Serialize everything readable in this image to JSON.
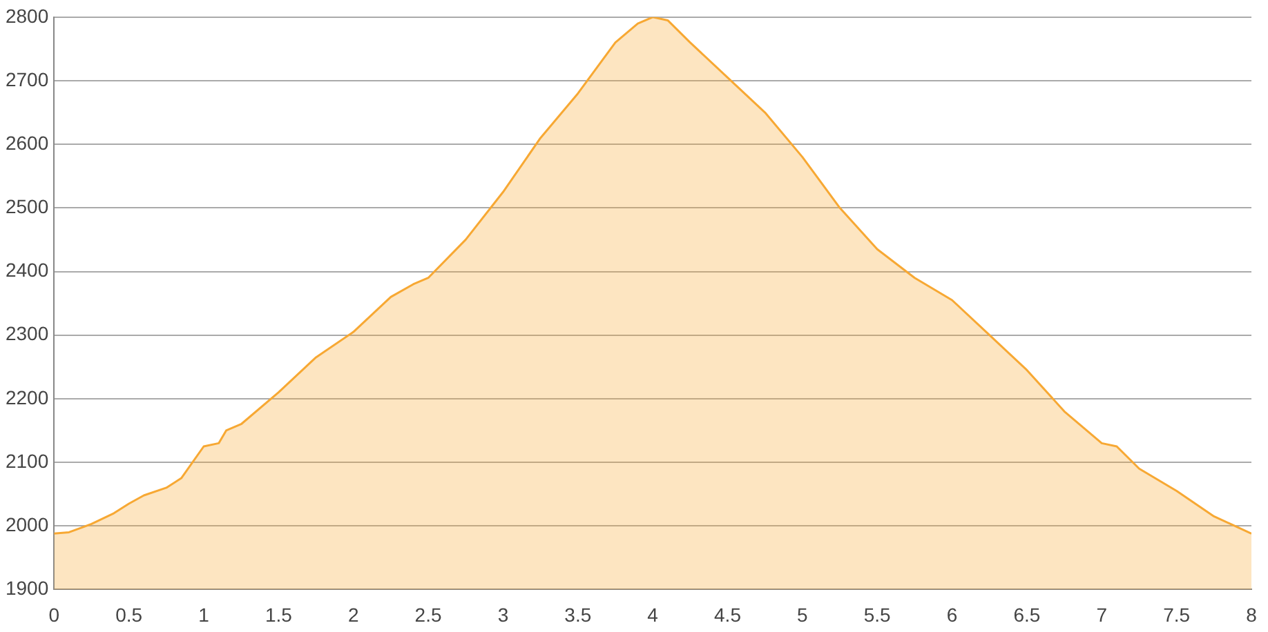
{
  "chart_data": {
    "type": "area",
    "x": [
      0,
      0.1,
      0.25,
      0.4,
      0.5,
      0.6,
      0.75,
      0.85,
      1.0,
      1.1,
      1.15,
      1.25,
      1.5,
      1.75,
      2.0,
      2.25,
      2.4,
      2.5,
      2.75,
      3.0,
      3.25,
      3.5,
      3.75,
      3.9,
      4.0,
      4.1,
      4.25,
      4.5,
      4.75,
      5.0,
      5.25,
      5.5,
      5.75,
      6.0,
      6.25,
      6.5,
      6.75,
      7.0,
      7.1,
      7.25,
      7.5,
      7.75,
      8.0
    ],
    "series": [
      {
        "color": "#f7a833",
        "values": [
          1988,
          1990,
          2003,
          2020,
          2035,
          2048,
          2060,
          2075,
          2125,
          2130,
          2150,
          2160,
          2210,
          2265,
          2305,
          2360,
          2380,
          2390,
          2450,
          2525,
          2610,
          2680,
          2760,
          2790,
          2800,
          2795,
          2760,
          2705,
          2650,
          2580,
          2500,
          2435,
          2390,
          2355,
          2300,
          2245,
          2180,
          2130,
          2125,
          2090,
          2055,
          2015,
          1988
        ]
      }
    ],
    "xlim": [
      0,
      8
    ],
    "xticks": [
      0,
      0.5,
      1,
      1.5,
      2,
      2.5,
      3,
      3.5,
      4,
      4.5,
      5,
      5.5,
      6,
      6.5,
      7,
      7.5,
      8
    ],
    "ylim": [
      1900,
      2800
    ],
    "yticks": [
      1900,
      2000,
      2100,
      2200,
      2300,
      2400,
      2500,
      2600,
      2700,
      2800
    ],
    "grid": "y",
    "legend": false
  }
}
